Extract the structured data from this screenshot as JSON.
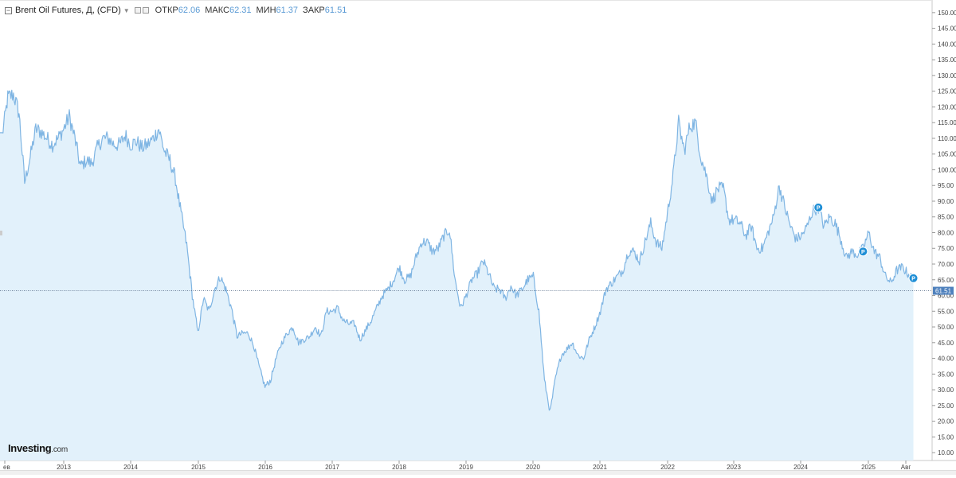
{
  "header": {
    "title": "Brent Oil Futures, Д, (CFD)",
    "open_label": "ОТКР",
    "open_value": "62.06",
    "high_label": "МАКС",
    "high_value": "62.31",
    "low_label": "МИН",
    "low_value": "61.37",
    "close_label": "ЗАКР",
    "close_value": "61.51"
  },
  "logo": {
    "brand": "Investing",
    "domain": ".com"
  },
  "colors": {
    "line": "#7fb5e3",
    "fill": "#e2f1fb",
    "price_tag": "#4f81bd",
    "marker": "#1f8fd6"
  },
  "chart_data": {
    "type": "area",
    "title": "Brent Oil Futures, Д, (CFD)",
    "xlabel": "",
    "ylabel": "",
    "ylim": [
      7.5,
      153
    ],
    "yticks": [
      "10.00",
      "15.00",
      "20.00",
      "25.00",
      "30.00",
      "35.00",
      "40.00",
      "45.00",
      "50.00",
      "55.00",
      "60.00",
      "65.00",
      "70.00",
      "75.00",
      "80.00",
      "85.00",
      "90.00",
      "95.00",
      "100.00",
      "105.00",
      "110.00",
      "115.00",
      "120.00",
      "125.00",
      "130.00",
      "135.00",
      "140.00",
      "145.00",
      "150.00"
    ],
    "xticks": [
      "ев",
      "2013",
      "2014",
      "2015",
      "2016",
      "2017",
      "2018",
      "2019",
      "2020",
      "2021",
      "2022",
      "2023",
      "2024",
      "2025",
      "Авг"
    ],
    "last_price": 61.51,
    "last_price_label": "61.51",
    "series": [
      {
        "x": [
          "2012-02",
          "2012-03",
          "2012-04",
          "2012-05",
          "2012-06",
          "2012-07",
          "2012-08",
          "2012-09",
          "2012-10",
          "2012-11",
          "2012-12",
          "2013-01",
          "2013-02",
          "2013-03",
          "2013-04",
          "2013-05",
          "2013-06",
          "2013-07",
          "2013-08",
          "2013-09",
          "2013-10",
          "2013-11",
          "2013-12",
          "2014-01",
          "2014-02",
          "2014-03",
          "2014-04",
          "2014-05",
          "2014-06",
          "2014-07",
          "2014-08",
          "2014-09",
          "2014-10",
          "2014-11",
          "2014-12",
          "2015-01",
          "2015-02",
          "2015-03",
          "2015-04",
          "2015-05",
          "2015-06",
          "2015-07",
          "2015-08",
          "2015-09",
          "2015-10",
          "2015-11",
          "2015-12",
          "2016-01",
          "2016-02",
          "2016-03",
          "2016-04",
          "2016-05",
          "2016-06",
          "2016-07",
          "2016-08",
          "2016-09",
          "2016-10",
          "2016-11",
          "2016-12",
          "2017-01",
          "2017-02",
          "2017-03",
          "2017-04",
          "2017-05",
          "2017-06",
          "2017-07",
          "2017-08",
          "2017-09",
          "2017-10",
          "2017-11",
          "2017-12",
          "2018-01",
          "2018-02",
          "2018-03",
          "2018-04",
          "2018-05",
          "2018-06",
          "2018-07",
          "2018-08",
          "2018-09",
          "2018-10",
          "2018-11",
          "2018-12",
          "2019-01",
          "2019-02",
          "2019-03",
          "2019-04",
          "2019-05",
          "2019-06",
          "2019-07",
          "2019-08",
          "2019-09",
          "2019-10",
          "2019-11",
          "2019-12",
          "2020-01",
          "2020-02",
          "2020-03",
          "2020-04",
          "2020-05",
          "2020-06",
          "2020-07",
          "2020-08",
          "2020-09",
          "2020-10",
          "2020-11",
          "2020-12",
          "2021-01",
          "2021-02",
          "2021-03",
          "2021-04",
          "2021-05",
          "2021-06",
          "2021-07",
          "2021-08",
          "2021-09",
          "2021-10",
          "2021-11",
          "2021-12",
          "2022-01",
          "2022-02",
          "2022-03",
          "2022-04",
          "2022-05",
          "2022-06",
          "2022-07",
          "2022-08",
          "2022-09",
          "2022-10",
          "2022-11",
          "2022-12",
          "2023-01",
          "2023-02",
          "2023-03",
          "2023-04",
          "2023-05",
          "2023-06",
          "2023-07",
          "2023-08",
          "2023-09",
          "2023-10",
          "2023-11",
          "2023-12",
          "2024-01",
          "2024-02",
          "2024-03",
          "2024-04",
          "2024-05",
          "2024-06",
          "2024-07",
          "2024-08",
          "2024-09",
          "2024-10",
          "2024-11",
          "2024-12",
          "2025-01",
          "2025-02",
          "2025-03",
          "2025-04",
          "2025-05",
          "2025-06",
          "2025-07",
          "2025-08",
          "2025-09"
        ],
        "values": [
          111,
          123,
          124,
          118,
          96,
          104,
          113,
          112,
          110,
          108,
          110,
          113,
          117,
          110,
          101,
          103,
          102,
          107,
          110,
          110,
          108,
          108,
          111,
          108,
          109,
          107,
          108,
          110,
          113,
          106,
          103,
          97,
          86,
          76,
          60,
          48,
          59,
          55,
          62,
          66,
          62,
          56,
          47,
          48,
          48,
          44,
          37,
          31,
          33,
          40,
          45,
          48,
          50,
          45,
          46,
          47,
          50,
          47,
          55,
          55,
          56,
          52,
          51,
          51,
          46,
          49,
          52,
          56,
          60,
          62,
          65,
          69,
          65,
          66,
          72,
          77,
          77,
          74,
          75,
          79,
          81,
          65,
          56,
          60,
          65,
          67,
          71,
          67,
          62,
          62,
          59,
          63,
          60,
          62,
          65,
          66,
          55,
          33,
          23,
          34,
          41,
          43,
          45,
          41,
          40,
          46,
          50,
          55,
          62,
          64,
          66,
          68,
          74,
          74,
          71,
          77,
          83,
          77,
          75,
          86,
          98,
          115,
          106,
          114,
          115,
          104,
          98,
          90,
          94,
          94,
          84,
          84,
          83,
          79,
          82,
          75,
          75,
          80,
          85,
          95,
          88,
          82,
          78,
          79,
          82,
          87,
          88,
          82,
          85,
          83,
          78,
          72,
          74,
          73,
          75,
          80,
          74,
          72,
          66,
          64,
          68,
          69,
          67,
          65
        ]
      }
    ],
    "markers": [
      {
        "x": "2024-04",
        "value": 88,
        "label": "P"
      },
      {
        "x": "2024-12",
        "value": 74,
        "label": "P"
      },
      {
        "x": "2025-09",
        "value": 65.5,
        "label": "P"
      }
    ]
  }
}
